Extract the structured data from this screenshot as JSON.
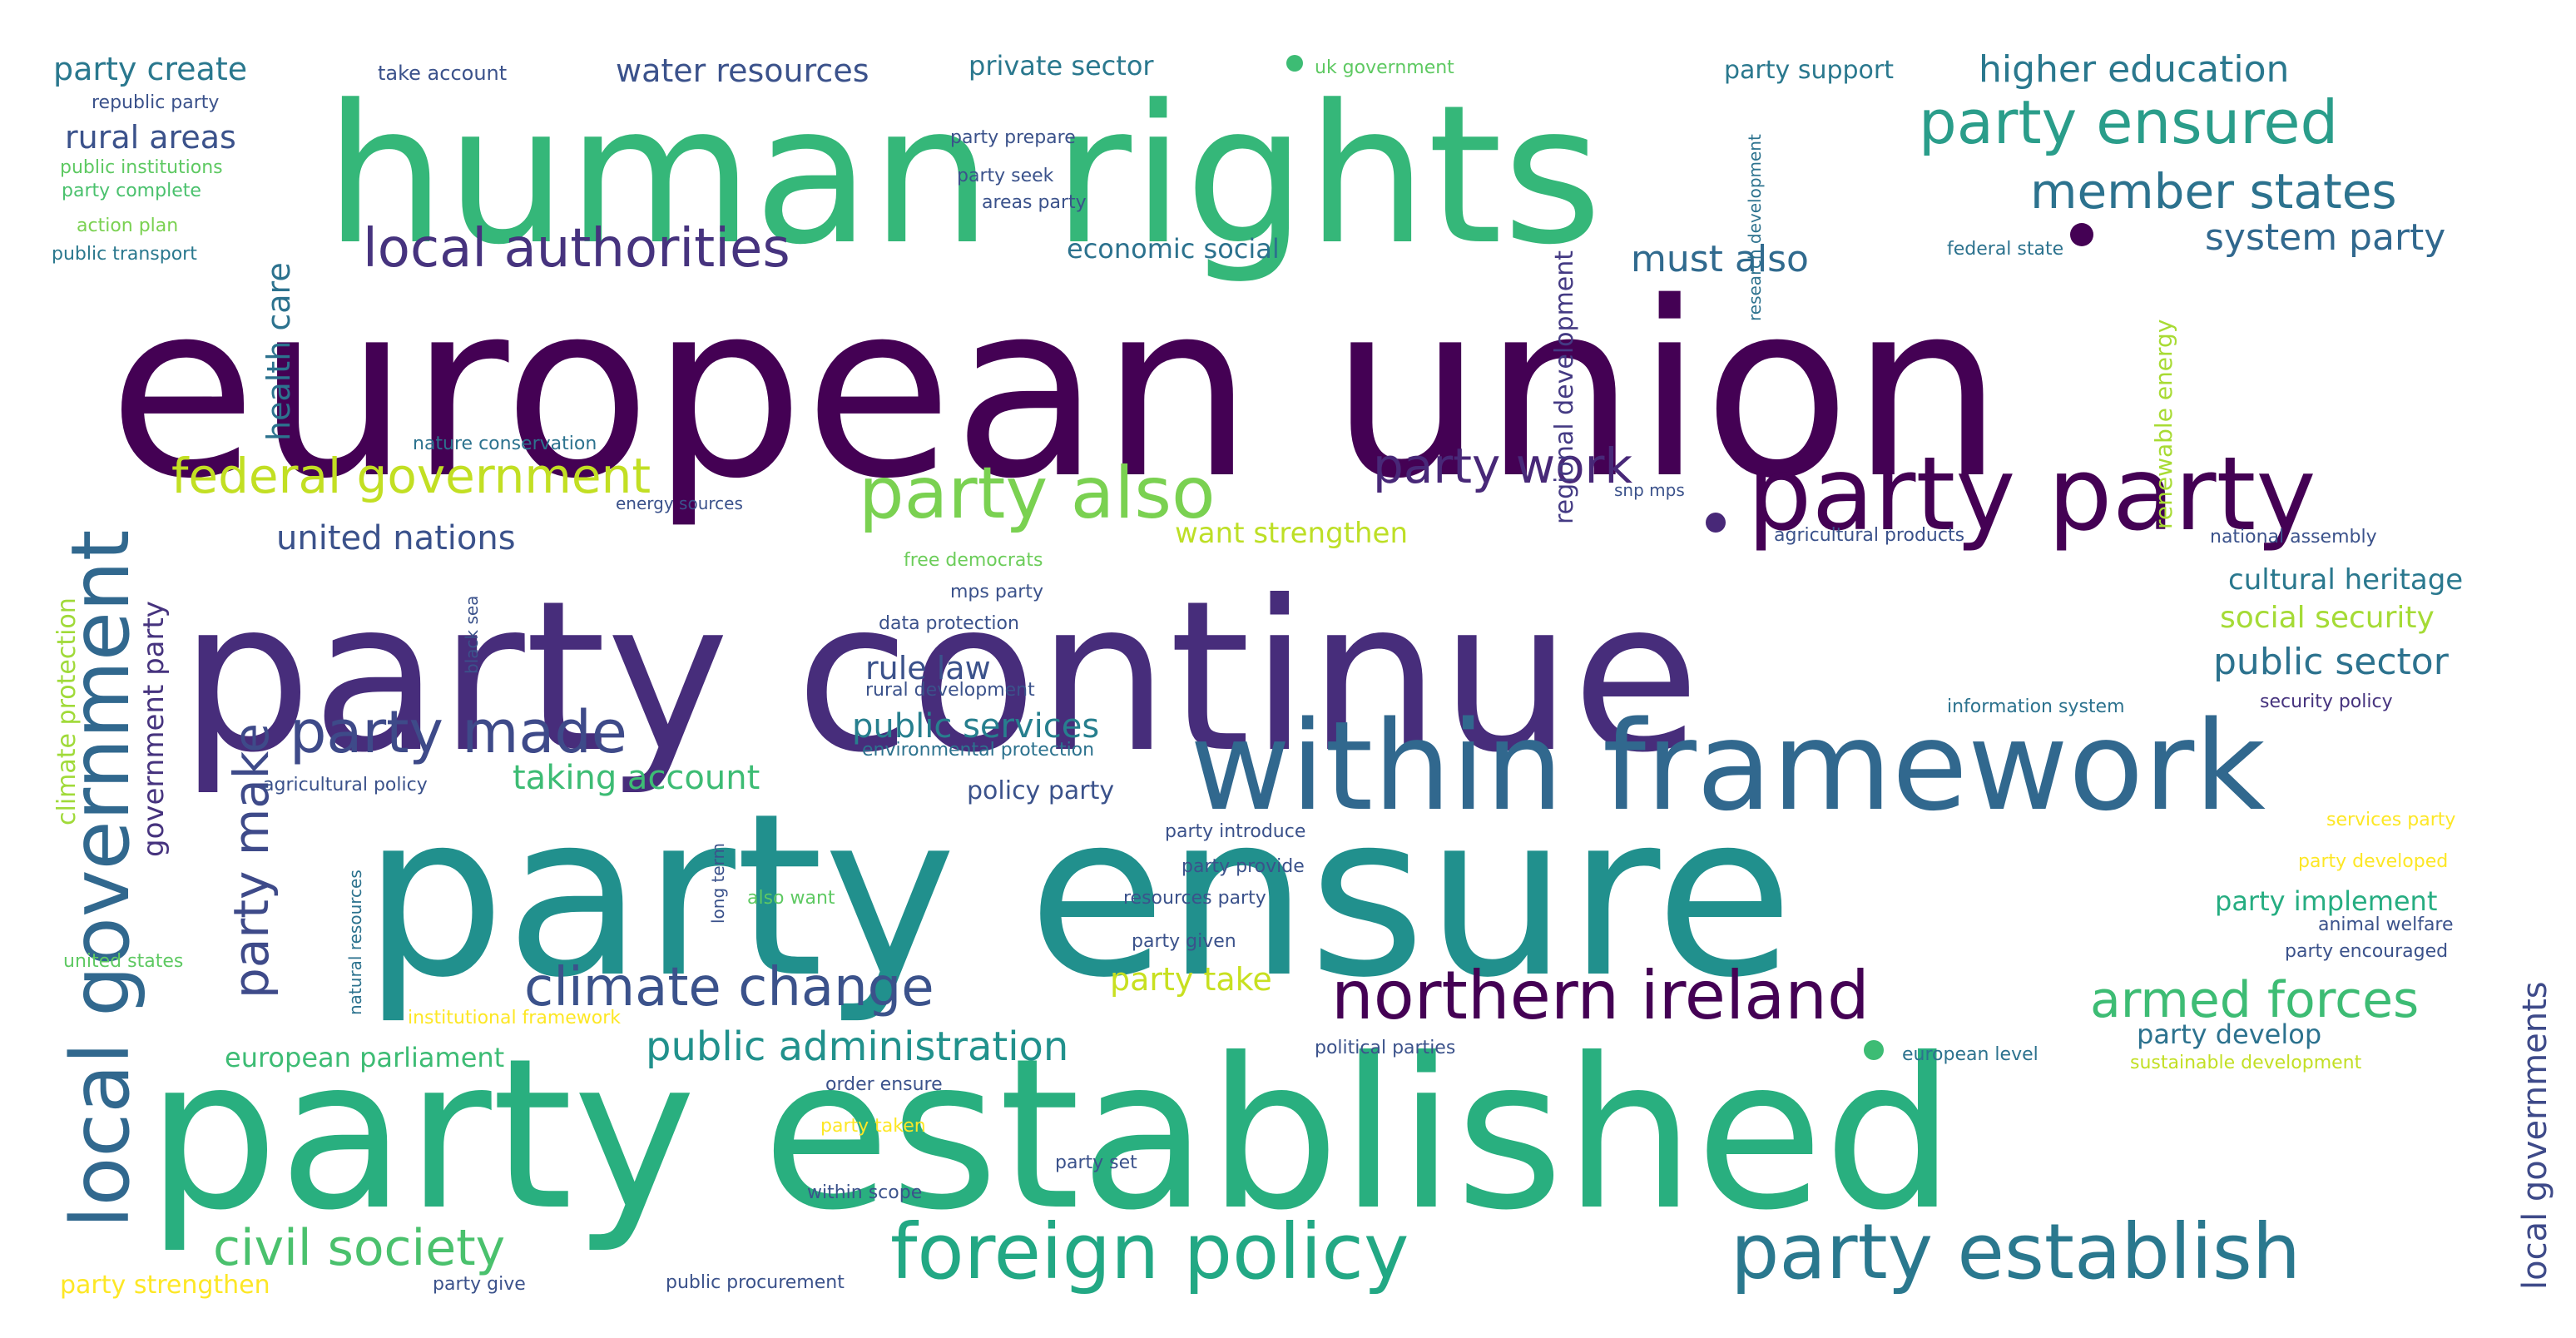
{
  "word_cloud": {
    "palette": [
      "#440154",
      "#46337e",
      "#365c8d",
      "#277f8e",
      "#1fa187",
      "#4ac16d",
      "#a0da39",
      "#fde725"
    ],
    "words": [
      {
        "text": "european union",
        "color": "#440154"
      },
      {
        "text": "party continue",
        "color": "#472d7b"
      },
      {
        "text": "party ensure",
        "color": "#21908d"
      },
      {
        "text": "party established",
        "color": "#29af7f"
      },
      {
        "text": "human rights",
        "color": "#35b779"
      },
      {
        "text": "within framework",
        "color": "#31688e"
      },
      {
        "text": "party party",
        "color": "#440154"
      },
      {
        "text": "foreign policy",
        "color": "#22a884"
      },
      {
        "text": "party establish",
        "color": "#2a788e"
      },
      {
        "text": "northern ireland",
        "color": "#440154"
      },
      {
        "text": "local government",
        "color": "#31688e"
      },
      {
        "text": "party also",
        "color": "#7ad151"
      },
      {
        "text": "party ensured",
        "color": "#2a9d8a"
      },
      {
        "text": "local authorities",
        "color": "#46337e"
      },
      {
        "text": "party made",
        "color": "#3e4a89"
      },
      {
        "text": "climate change",
        "color": "#3b528b"
      },
      {
        "text": "armed forces",
        "color": "#3dbc74"
      },
      {
        "text": "federal government",
        "color": "#c2df23"
      },
      {
        "text": "civil society",
        "color": "#4ac16d"
      },
      {
        "text": "party make",
        "color": "#3e4a89"
      },
      {
        "text": "member states",
        "color": "#2c728e"
      },
      {
        "text": "party work",
        "color": "#482878"
      },
      {
        "text": "public administration",
        "color": "#21918c"
      },
      {
        "text": "local governments",
        "color": "#3e4a89"
      },
      {
        "text": "higher education",
        "color": "#2a788e"
      },
      {
        "text": "system party",
        "color": "#31688e"
      },
      {
        "text": "public sector",
        "color": "#2c728e"
      },
      {
        "text": "must also",
        "color": "#306a8e"
      },
      {
        "text": "united nations",
        "color": "#3b528b"
      },
      {
        "text": "taking account",
        "color": "#3dbc74"
      },
      {
        "text": "public services",
        "color": "#277f8e"
      },
      {
        "text": "water resources",
        "color": "#3b528b"
      },
      {
        "text": "party create",
        "color": "#2a788e"
      },
      {
        "text": "rural areas",
        "color": "#3b528b"
      },
      {
        "text": "want strengthen",
        "color": "#bddf26"
      },
      {
        "text": "party take",
        "color": "#c8e020"
      },
      {
        "text": "health care",
        "color": "#2c728e"
      },
      {
        "text": "government party",
        "color": "#46337e"
      },
      {
        "text": "cultural heritage",
        "color": "#2a788e"
      },
      {
        "text": "social security",
        "color": "#a5db36"
      },
      {
        "text": "rule law",
        "color": "#3b528b"
      },
      {
        "text": "european parliament",
        "color": "#3dbc74"
      },
      {
        "text": "party implement",
        "color": "#26ad81"
      },
      {
        "text": "party develop",
        "color": "#2c728e"
      },
      {
        "text": "party strengthen",
        "color": "#fde725"
      },
      {
        "text": "private sector",
        "color": "#2a788e"
      },
      {
        "text": "economic social",
        "color": "#2c728e"
      },
      {
        "text": "policy party",
        "color": "#3b528b"
      },
      {
        "text": "regional development",
        "color": "#443a83"
      },
      {
        "text": "renewable energy",
        "color": "#a8db34"
      },
      {
        "text": "climate protection",
        "color": "#a0da39"
      },
      {
        "text": "party support",
        "color": "#2a788e"
      },
      {
        "text": "take account",
        "color": "#3b528b"
      },
      {
        "text": "uk government",
        "color": "#5ec962"
      },
      {
        "text": "republic party",
        "color": "#3b528b"
      },
      {
        "text": "public institutions",
        "color": "#5ec962"
      },
      {
        "text": "party complete",
        "color": "#4ac16d"
      },
      {
        "text": "action plan",
        "color": "#7ad151"
      },
      {
        "text": "public transport",
        "color": "#2a788e"
      },
      {
        "text": "party prepare",
        "color": "#3b528b"
      },
      {
        "text": "party seek",
        "color": "#3b528b"
      },
      {
        "text": "areas party",
        "color": "#3b528b"
      },
      {
        "text": "research development",
        "color": "#2c728e"
      },
      {
        "text": "federal state",
        "color": "#2c728e"
      },
      {
        "text": "nature conservation",
        "color": "#2c728e"
      },
      {
        "text": "energy sources",
        "color": "#3b528b"
      },
      {
        "text": "snp mps",
        "color": "#3b528b"
      },
      {
        "text": "agricultural products",
        "color": "#3b528b"
      },
      {
        "text": "national assembly",
        "color": "#3b528b"
      },
      {
        "text": "free democrats",
        "color": "#6ccd5a"
      },
      {
        "text": "mps party",
        "color": "#3b528b"
      },
      {
        "text": "data protection",
        "color": "#3b528b"
      },
      {
        "text": "black sea",
        "color": "#3b528b"
      },
      {
        "text": "rural development",
        "color": "#3b528b"
      },
      {
        "text": "information system",
        "color": "#2c728e"
      },
      {
        "text": "security policy",
        "color": "#46337e"
      },
      {
        "text": "environmental protection",
        "color": "#2c728e"
      },
      {
        "text": "agricultural policy",
        "color": "#3b528b"
      },
      {
        "text": "party introduce",
        "color": "#3b528b"
      },
      {
        "text": "party provide",
        "color": "#3b528b"
      },
      {
        "text": "services party",
        "color": "#fde725"
      },
      {
        "text": "party developed",
        "color": "#fde725"
      },
      {
        "text": "natural resources",
        "color": "#2c728e"
      },
      {
        "text": "long term",
        "color": "#3b528b"
      },
      {
        "text": "also want",
        "color": "#5ec962"
      },
      {
        "text": "resources party",
        "color": "#3b528b"
      },
      {
        "text": "animal welfare",
        "color": "#3b528b"
      },
      {
        "text": "party given",
        "color": "#3b528b"
      },
      {
        "text": "party encouraged",
        "color": "#3b528b"
      },
      {
        "text": "united states",
        "color": "#5ec962"
      },
      {
        "text": "institutional framework",
        "color": "#fde725"
      },
      {
        "text": "political parties",
        "color": "#3b528b"
      },
      {
        "text": "european level",
        "color": "#2c728e"
      },
      {
        "text": "sustainable development",
        "color": "#c2df23"
      },
      {
        "text": "order ensure",
        "color": "#3b528b"
      },
      {
        "text": "party taken",
        "color": "#fde725"
      },
      {
        "text": "party set",
        "color": "#3b528b"
      },
      {
        "text": "within scope",
        "color": "#3b528b"
      },
      {
        "text": "party give",
        "color": "#3b528b"
      },
      {
        "text": "public procurement",
        "color": "#3b528b"
      }
    ]
  }
}
